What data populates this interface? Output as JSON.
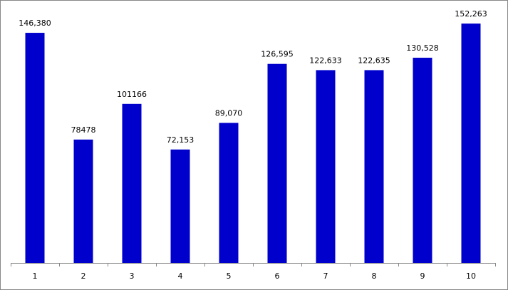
{
  "chart_data": {
    "type": "bar",
    "categories": [
      "1",
      "2",
      "3",
      "4",
      "5",
      "6",
      "7",
      "8",
      "9",
      "10"
    ],
    "values": [
      146380,
      78478,
      101166,
      72153,
      89070,
      126595,
      122633,
      122635,
      130528,
      152263
    ],
    "value_labels": [
      "146,380",
      "78478",
      "101166",
      "72,153",
      "89,070",
      "126,595",
      "122,633",
      "122,635",
      "130,528",
      "152,263"
    ],
    "color": "#0000cc",
    "ylim": [
      0,
      160000
    ]
  }
}
